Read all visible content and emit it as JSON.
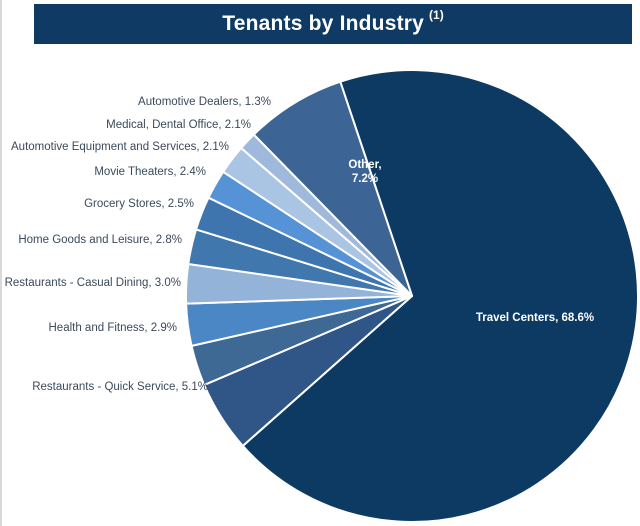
{
  "header": {
    "title": "Tenants by Industry",
    "footnote_marker": "(1)"
  },
  "chart_data": {
    "type": "pie",
    "title": "Tenants by Industry",
    "unit": "%",
    "slices": [
      {
        "label": "Travel Centers",
        "value": 68.6,
        "color": "#0d3a63",
        "label_text": "Travel Centers, 68.6%"
      },
      {
        "label": "Restaurants - Quick Service",
        "value": 5.1,
        "color": "#2f5686",
        "label_text": "Restaurants - Quick Service, 5.1%"
      },
      {
        "label": "Health and Fitness",
        "value": 2.9,
        "color": "#3e6994",
        "label_text": "Health and Fitness, 2.9%"
      },
      {
        "label": "Restaurants - Casual Dining",
        "value": 3.0,
        "color": "#4a87c4",
        "label_text": "Restaurants - Casual Dining, 3.0%"
      },
      {
        "label": "Home Goods and Leisure",
        "value": 2.8,
        "color": "#93b3d9",
        "label_text": "Home Goods and Leisure, 2.8%"
      },
      {
        "label": "Grocery Stores",
        "value": 2.5,
        "color": "#4077ad",
        "label_text": "Grocery Stores, 2.5%"
      },
      {
        "label": "Movie Theaters",
        "value": 2.4,
        "color": "#3f75ae",
        "label_text": "Movie Theaters, 2.4%"
      },
      {
        "label": "Automotive Equipment and Services",
        "value": 2.1,
        "color": "#5593d6",
        "label_text": "Automotive Equipment and Services, 2.1%"
      },
      {
        "label": "Medical, Dental Office",
        "value": 2.1,
        "color": "#aac4e3",
        "label_text": "Medical, Dental Office, 2.1%"
      },
      {
        "label": "Automotive Dealers",
        "value": 1.3,
        "color": "#9fb9dc",
        "label_text": "Automotive Dealers, 1.3%"
      },
      {
        "label": "Other",
        "value": 7.2,
        "color": "#3c6595",
        "label_text": "Other, 7.2%",
        "label_lines": [
          "Other,",
          "7.2%"
        ]
      }
    ]
  }
}
